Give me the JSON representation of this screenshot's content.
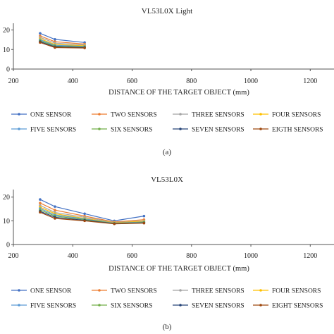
{
  "chart_data": [
    {
      "type": "line",
      "title": "VL53L0X Light",
      "xlabel": "DISTANCE OF THE TARGET OBJECT (mm)",
      "ylabel": "",
      "xlim": [
        200,
        1280
      ],
      "ylim": [
        0,
        22
      ],
      "xticks": [
        "200",
        "400",
        "600",
        "800",
        "1000",
        "1200"
      ],
      "yticks": [
        "0",
        "10",
        "20"
      ],
      "legend_position": "bottom",
      "caption": "(a)",
      "series": [
        {
          "name": "ONE SENSOR",
          "color": "#4472c4",
          "x": [
            290,
            340,
            440
          ],
          "y": [
            18.3,
            15.2,
            13.6
          ]
        },
        {
          "name": "TWO SENSORS",
          "color": "#ed7d31",
          "x": [
            290,
            340,
            440
          ],
          "y": [
            17.0,
            14.0,
            12.8
          ]
        },
        {
          "name": "THREE SENSORS",
          "color": "#a5a5a5",
          "x": [
            290,
            340,
            440
          ],
          "y": [
            16.2,
            13.3,
            12.3
          ]
        },
        {
          "name": "FOUR SENSORS",
          "color": "#ffc000",
          "x": [
            290,
            340,
            440
          ],
          "y": [
            15.5,
            12.6,
            11.9
          ]
        },
        {
          "name": "FIVE SENSORS",
          "color": "#5b9bd5",
          "x": [
            290,
            340,
            440
          ],
          "y": [
            15.0,
            12.2,
            11.6
          ]
        },
        {
          "name": "SIX SENSORS",
          "color": "#70ad47",
          "x": [
            290,
            340,
            440
          ],
          "y": [
            14.5,
            11.8,
            11.3
          ]
        },
        {
          "name": "SEVEN SENSORS",
          "color": "#264478",
          "x": [
            290,
            340,
            440
          ],
          "y": [
            14.0,
            11.4,
            11.0
          ]
        },
        {
          "name": "EIGTH SENSORS",
          "color": "#9e480e",
          "x": [
            290,
            340,
            440
          ],
          "y": [
            13.6,
            11.0,
            10.8
          ]
        }
      ]
    },
    {
      "type": "line",
      "title": "VL53L0X",
      "xlabel": "DISTANCE OF THE TARGET OBJECT (mm)",
      "ylabel": "",
      "xlim": [
        200,
        1280
      ],
      "ylim": [
        0,
        22
      ],
      "xticks": [
        "200",
        "400",
        "600",
        "800",
        "1000",
        "1200"
      ],
      "yticks": [
        "0",
        "10",
        "20"
      ],
      "legend_position": "bottom",
      "caption": "(b)",
      "series": [
        {
          "name": "ONE SENSOR",
          "color": "#4472c4",
          "x": [
            290,
            340,
            440,
            540,
            640
          ],
          "y": [
            19.0,
            16.0,
            13.0,
            10.0,
            12.0
          ]
        },
        {
          "name": "TWO SENSORS",
          "color": "#ed7d31",
          "x": [
            290,
            340,
            440,
            540,
            640
          ],
          "y": [
            17.5,
            14.5,
            12.0,
            9.5,
            10.5
          ]
        },
        {
          "name": "THREE SENSORS",
          "color": "#a5a5a5",
          "x": [
            290,
            340,
            440,
            540,
            640
          ],
          "y": [
            16.5,
            13.5,
            11.5,
            9.3,
            10.0
          ]
        },
        {
          "name": "FOUR SENSORS",
          "color": "#ffc000",
          "x": [
            290,
            340,
            440,
            540,
            640
          ],
          "y": [
            15.8,
            13.0,
            11.0,
            9.2,
            9.8
          ]
        },
        {
          "name": "FIVE SENSORS",
          "color": "#5b9bd5",
          "x": [
            290,
            340,
            440,
            540,
            640
          ],
          "y": [
            15.2,
            12.5,
            10.8,
            9.0,
            9.5
          ]
        },
        {
          "name": "SIX SENSORS",
          "color": "#70ad47",
          "x": [
            290,
            340,
            440,
            540,
            640
          ],
          "y": [
            14.6,
            12.0,
            10.5,
            8.9,
            9.3
          ]
        },
        {
          "name": "SEVEN SENSORS",
          "color": "#264478",
          "x": [
            290,
            340,
            440,
            540,
            640
          ],
          "y": [
            14.0,
            11.5,
            10.2,
            8.8,
            9.1
          ]
        },
        {
          "name": "EIGHT SENSORS",
          "color": "#9e480e",
          "x": [
            290,
            340,
            440,
            540,
            640
          ],
          "y": [
            13.6,
            11.0,
            10.0,
            8.7,
            9.0
          ]
        }
      ]
    }
  ]
}
